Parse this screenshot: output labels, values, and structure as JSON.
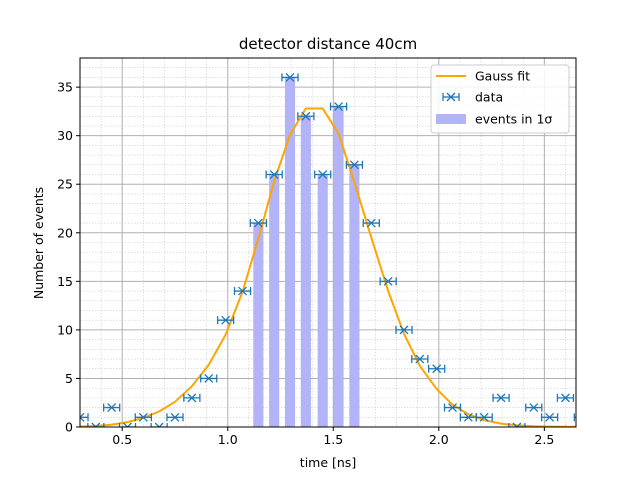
{
  "chart_data": {
    "type": "bar",
    "title": "detector distance 40cm",
    "xlabel": "time [ns]",
    "ylabel": "Number of events",
    "xlim": [
      0.3,
      2.65
    ],
    "ylim": [
      0,
      38
    ],
    "xticks": [
      0.5,
      1.0,
      1.5,
      2.0,
      2.5
    ],
    "xtick_labels": [
      "0.5",
      "1.0",
      "1.5",
      "2.0",
      "2.5"
    ],
    "yticks": [
      0,
      5,
      10,
      15,
      20,
      25,
      30,
      35
    ],
    "ytick_labels": [
      "0",
      "5",
      "10",
      "15",
      "20",
      "25",
      "30",
      "35"
    ],
    "grid": "major and minor",
    "legend_position": "top-right",
    "legend": [
      "Gauss fit",
      "data",
      "events in 1σ"
    ],
    "colors": {
      "fit": "#ffa500",
      "data": "#1f77b4",
      "bars": "#b3b3f7",
      "grid_major": "#b0b0b0",
      "grid_minor": "#cccccc"
    },
    "data": {
      "x": [
        0.3,
        0.375,
        0.45,
        0.525,
        0.6,
        0.675,
        0.75,
        0.83,
        0.91,
        0.99,
        1.07,
        1.145,
        1.22,
        1.295,
        1.37,
        1.45,
        1.525,
        1.6,
        1.68,
        1.76,
        1.835,
        1.91,
        1.99,
        2.065,
        2.14,
        2.215,
        2.295,
        2.37,
        2.45,
        2.525,
        2.6,
        2.68
      ],
      "y": [
        1,
        0,
        2,
        0,
        1,
        0,
        1,
        3,
        5,
        11,
        14,
        21,
        26,
        36,
        32,
        26,
        33,
        27,
        21,
        15,
        10,
        7,
        6,
        2,
        1,
        1,
        3,
        0,
        2,
        1,
        3,
        1
      ],
      "xerr": 0.038
    },
    "sigma_bars": {
      "x": [
        1.145,
        1.22,
        1.295,
        1.37,
        1.45,
        1.525,
        1.6
      ],
      "y": [
        21,
        26,
        36,
        32,
        26,
        33,
        27
      ],
      "width": 0.048
    },
    "fit": {
      "x": [
        0.3,
        0.375,
        0.45,
        0.525,
        0.6,
        0.675,
        0.75,
        0.83,
        0.91,
        0.99,
        1.07,
        1.145,
        1.22,
        1.295,
        1.37,
        1.45,
        1.525,
        1.6,
        1.68,
        1.76,
        1.835,
        1.91,
        1.99,
        2.065,
        2.14,
        2.215,
        2.295,
        2.37,
        2.45,
        2.525,
        2.6,
        2.68
      ],
      "y": [
        0.05,
        0.1,
        0.25,
        0.5,
        0.95,
        1.6,
        2.6,
        4.2,
        6.4,
        9.5,
        13.9,
        19.4,
        25.3,
        30.1,
        32.8,
        32.8,
        30.2,
        25.2,
        19.5,
        14.0,
        9.6,
        6.3,
        3.9,
        2.3,
        1.3,
        0.7,
        0.35,
        0.17,
        0.08,
        0.04,
        0.02,
        0.01
      ]
    }
  }
}
